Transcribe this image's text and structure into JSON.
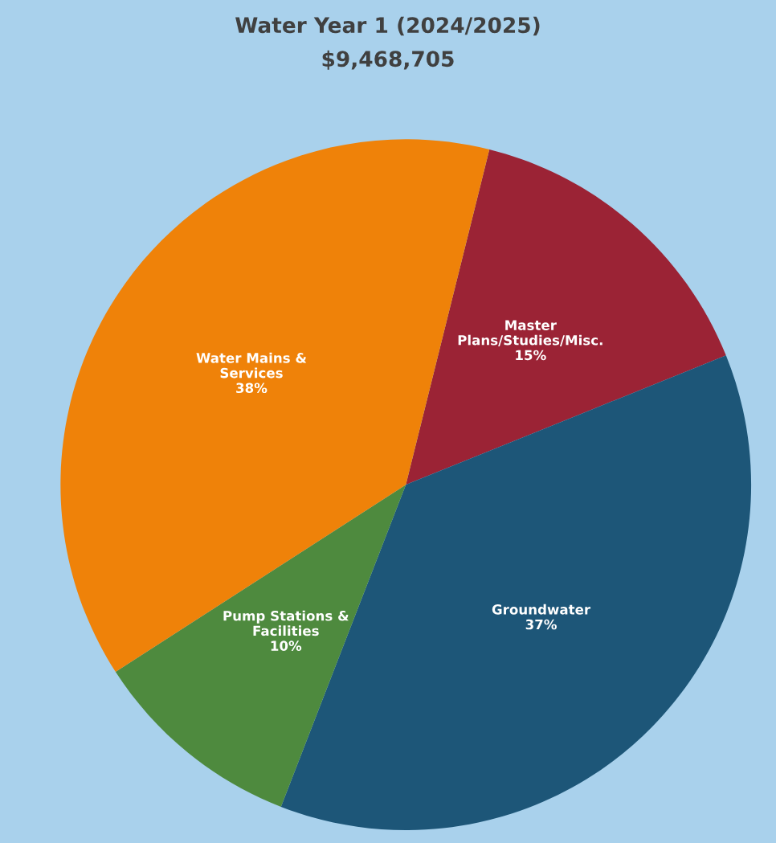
{
  "chart_data": {
    "type": "pie",
    "title": "Water Year 1 (2024/2025)",
    "subtitle": "$9,468,705",
    "categories": [
      "Master\nPlans/Studies/Misc.",
      "Groundwater",
      "Pump Stations &\nFacilities",
      "Water Mains &\nServices"
    ],
    "values": [
      15,
      37,
      10,
      38
    ],
    "colors": [
      "#9b2335",
      "#1d5678",
      "#4e8a3e",
      "#ef8209"
    ],
    "value_labels": [
      "15%",
      "37%",
      "10%",
      "38%"
    ],
    "legend": false
  }
}
